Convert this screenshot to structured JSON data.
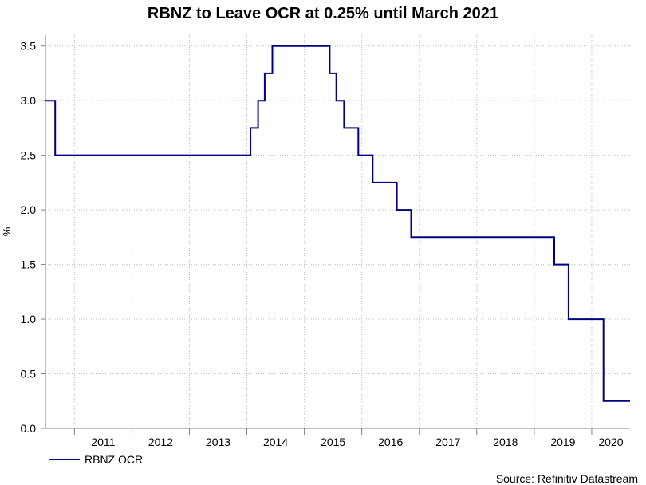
{
  "chart_data": {
    "type": "line",
    "title": "RBNZ to Leave OCR at 0.25% until March 2021",
    "xlabel": "",
    "ylabel": "%",
    "ylim": [
      0,
      3.6
    ],
    "yticks": [
      "0.0",
      "0.5",
      "1.0",
      "1.5",
      "2.0",
      "2.5",
      "3.0",
      "3.5"
    ],
    "xlim": [
      "2010-07",
      "2020-09"
    ],
    "xticks": [
      "2011",
      "2012",
      "2013",
      "2014",
      "2015",
      "2016",
      "2017",
      "2018",
      "2019",
      "2020"
    ],
    "grid": true,
    "legend_position": "bottom-left",
    "step": true,
    "series": [
      {
        "name": "RBNZ OCR",
        "color": "#000080",
        "points": [
          [
            "2010-07-01",
            3.0
          ],
          [
            "2010-09-01",
            2.5
          ],
          [
            "2014-01-24",
            2.75
          ],
          [
            "2014-03-13",
            3.0
          ],
          [
            "2014-04-24",
            3.25
          ],
          [
            "2014-06-12",
            3.5
          ],
          [
            "2015-06-11",
            3.25
          ],
          [
            "2015-07-23",
            3.0
          ],
          [
            "2015-09-10",
            2.75
          ],
          [
            "2015-12-10",
            2.5
          ],
          [
            "2016-03-10",
            2.25
          ],
          [
            "2016-08-11",
            2.0
          ],
          [
            "2016-11-10",
            1.75
          ],
          [
            "2019-05-08",
            1.5
          ],
          [
            "2019-08-07",
            1.0
          ],
          [
            "2020-03-16",
            0.25
          ],
          [
            "2020-09-01",
            0.25
          ]
        ]
      }
    ]
  },
  "source": "Source: Refinitiv Datastream"
}
